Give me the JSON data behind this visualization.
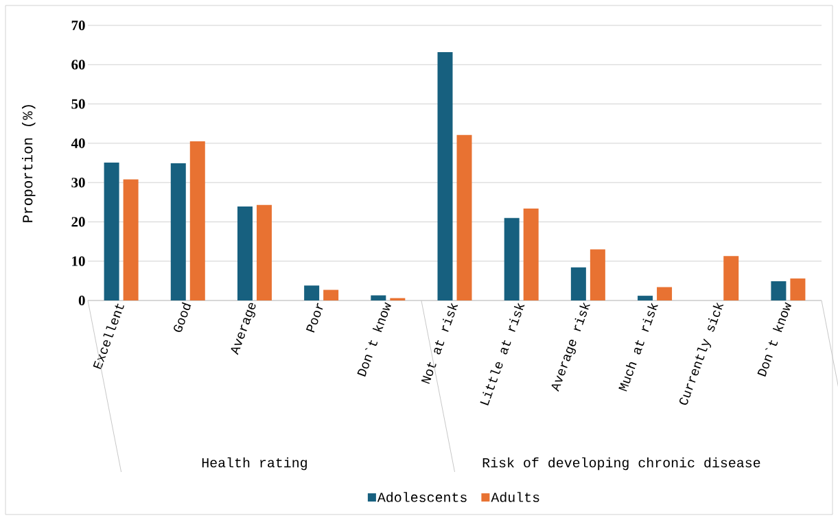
{
  "chart_data": {
    "type": "bar",
    "ylabel": "Proportion (%)",
    "categories": [
      "Excellent",
      "Good",
      "Average",
      "Poor",
      "Don`t know",
      "Not at risk",
      "Little at risk",
      "Average risk",
      "Much at risk",
      "Currently sick",
      "Don`t know"
    ],
    "series": [
      {
        "name": "Adolescents",
        "color": "#17607f",
        "values": [
          35.1,
          34.9,
          23.9,
          3.8,
          1.3,
          63.2,
          21.0,
          8.4,
          1.2,
          0,
          4.9
        ]
      },
      {
        "name": "Adults",
        "color": "#e87232",
        "values": [
          30.8,
          40.5,
          24.3,
          2.7,
          0.6,
          42.1,
          23.4,
          13.0,
          3.4,
          11.3,
          5.6
        ]
      }
    ],
    "ylim": [
      0,
      70
    ],
    "yticks": [
      0,
      10,
      20,
      30,
      40,
      50,
      60,
      70
    ],
    "grid": "y",
    "legend": "bottom",
    "annotations": [
      "Health rating",
      "Risk of developing chronic disease"
    ]
  }
}
